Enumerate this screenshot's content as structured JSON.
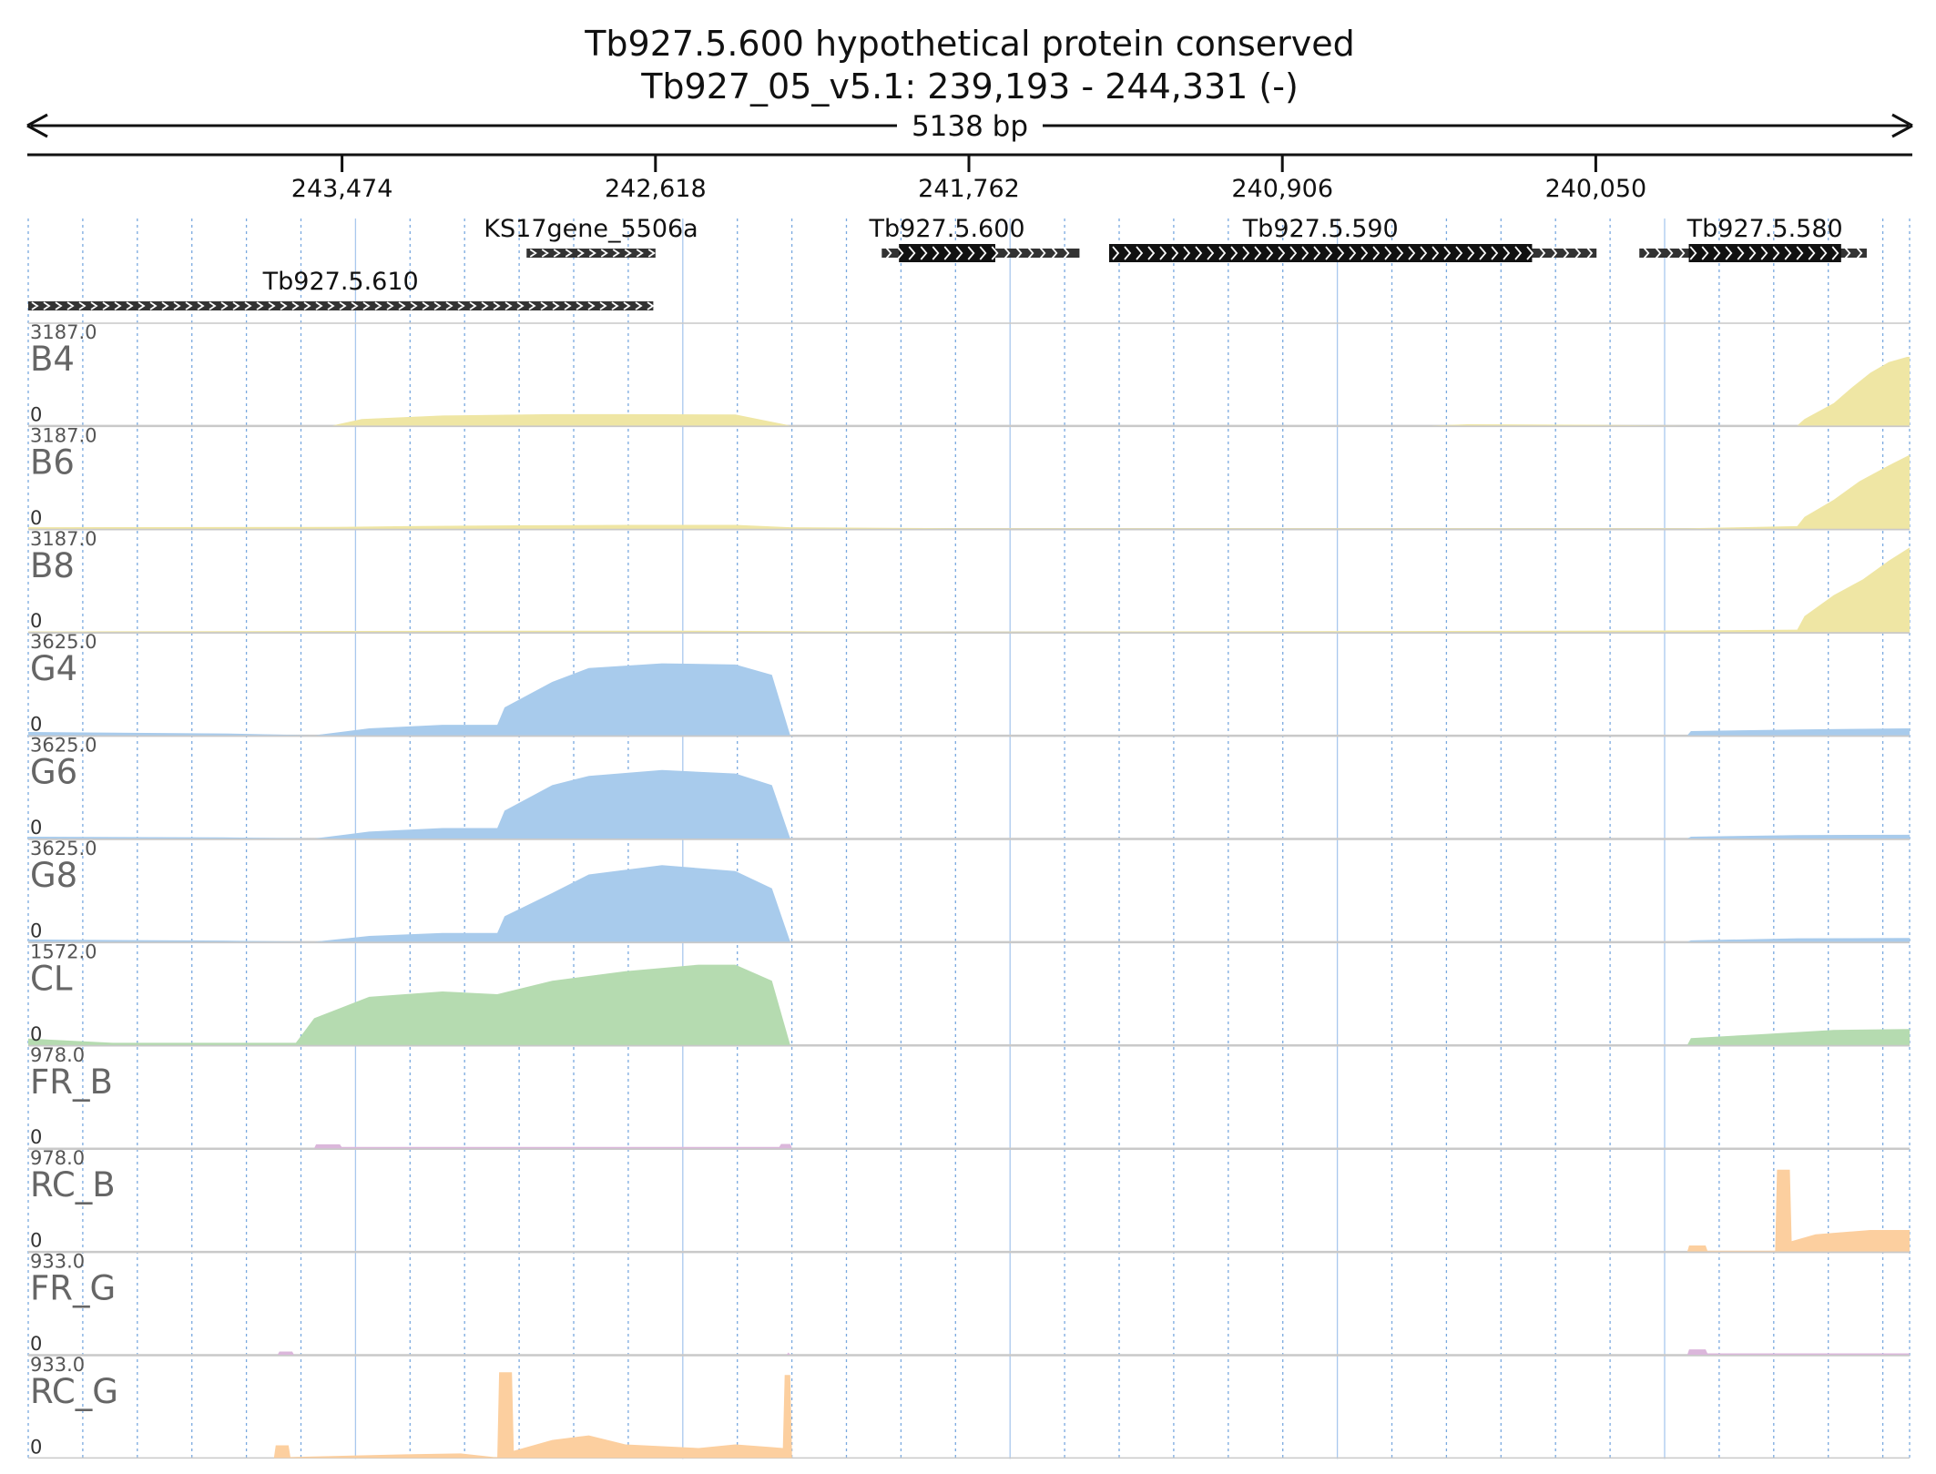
{
  "chart_data": {
    "type": "area",
    "title": "Tb927.5.600  hypothetical protein  conserved",
    "subtitle": "Tb927_05_v5.1: 239,193 - 244,331 (-)",
    "span_label": "5138 bp",
    "region": {
      "chrom": "Tb927_05_v5.1",
      "start": 239193,
      "end": 244331,
      "strand": "-"
    },
    "ticks": [
      "243,474",
      "242,618",
      "241,762",
      "240,906",
      "240,050"
    ],
    "tick_values": [
      243474,
      242618,
      241762,
      240906,
      240050
    ],
    "genes": [
      {
        "name": "KS17gene_5506a",
        "start": 242618,
        "end": 242970,
        "cds": null,
        "row": 0
      },
      {
        "name": "Tb927.5.600",
        "start": 241460,
        "end": 242000,
        "cds": [
          241690,
          241953
        ],
        "row": 0
      },
      {
        "name": "Tb927.5.590",
        "start": 240048,
        "end": 241379,
        "cds": [
          240224,
          241379
        ],
        "row": 0
      },
      {
        "name": "Tb927.5.580",
        "start": 239310,
        "end": 239931,
        "cds": [
          239380,
          239796
        ],
        "row": 0
      },
      {
        "name": "Tb927.5.610",
        "start": 242624,
        "end": 244331,
        "cds": null,
        "row": 1
      }
    ],
    "series": [
      {
        "name": "B4",
        "max_label": "3187.0",
        "zero_label": "0",
        "ylim": [
          0,
          3187
        ],
        "color": "#efe6a4",
        "points": [
          [
            244331,
            0
          ],
          [
            243500,
            0
          ],
          [
            243420,
            250
          ],
          [
            243200,
            380
          ],
          [
            242900,
            430
          ],
          [
            242700,
            430
          ],
          [
            242400,
            420
          ],
          [
            242250,
            0
          ],
          [
            240500,
            0
          ],
          [
            240400,
            50
          ],
          [
            240100,
            30
          ],
          [
            239800,
            0
          ],
          [
            239500,
            0
          ],
          [
            239480,
            250
          ],
          [
            239400,
            850
          ],
          [
            239350,
            1450
          ],
          [
            239300,
            2000
          ],
          [
            239250,
            2400
          ],
          [
            239200,
            2600
          ],
          [
            239193,
            2600
          ]
        ]
      },
      {
        "name": "B6",
        "max_label": "3187.0",
        "zero_label": "0",
        "ylim": [
          0,
          3187
        ],
        "color": "#efe6a4",
        "points": [
          [
            244331,
            60
          ],
          [
            243500,
            70
          ],
          [
            243300,
            100
          ],
          [
            243000,
            130
          ],
          [
            242700,
            150
          ],
          [
            242400,
            150
          ],
          [
            242250,
            60
          ],
          [
            241800,
            20
          ],
          [
            239800,
            20
          ],
          [
            239500,
            100
          ],
          [
            239480,
            450
          ],
          [
            239400,
            1100
          ],
          [
            239330,
            1800
          ],
          [
            239250,
            2400
          ],
          [
            239193,
            2800
          ]
        ]
      },
      {
        "name": "B8",
        "max_label": "3187.0",
        "zero_label": "0",
        "ylim": [
          0,
          3187
        ],
        "color": "#efe6a4",
        "points": [
          [
            244331,
            20
          ],
          [
            243500,
            40
          ],
          [
            243000,
            50
          ],
          [
            242500,
            50
          ],
          [
            242250,
            30
          ],
          [
            241800,
            10
          ],
          [
            239800,
            60
          ],
          [
            239500,
            90
          ],
          [
            239480,
            600
          ],
          [
            239400,
            1400
          ],
          [
            239320,
            2000
          ],
          [
            239250,
            2700
          ],
          [
            239193,
            3200
          ]
        ]
      },
      {
        "name": "G4",
        "max_label": "3625.0",
        "zero_label": "0",
        "ylim": [
          0,
          3625
        ],
        "color": "#a8cbec",
        "points": [
          [
            244331,
            140
          ],
          [
            243800,
            80
          ],
          [
            243550,
            0
          ],
          [
            243400,
            300
          ],
          [
            243200,
            450
          ],
          [
            243050,
            450
          ],
          [
            243030,
            1200
          ],
          [
            242900,
            2300
          ],
          [
            242800,
            2900
          ],
          [
            242600,
            3100
          ],
          [
            242400,
            3050
          ],
          [
            242300,
            2600
          ],
          [
            242250,
            0
          ],
          [
            241500,
            0
          ],
          [
            239800,
            0
          ],
          [
            239790,
            180
          ],
          [
            239500,
            250
          ],
          [
            239193,
            300
          ]
        ]
      },
      {
        "name": "G6",
        "max_label": "3625.0",
        "zero_label": "0",
        "ylim": [
          0,
          3625
        ],
        "color": "#a8cbec",
        "points": [
          [
            244331,
            80
          ],
          [
            243800,
            50
          ],
          [
            243550,
            0
          ],
          [
            243400,
            300
          ],
          [
            243200,
            450
          ],
          [
            243050,
            450
          ],
          [
            243030,
            1200
          ],
          [
            242900,
            2300
          ],
          [
            242800,
            2700
          ],
          [
            242600,
            2950
          ],
          [
            242400,
            2800
          ],
          [
            242300,
            2300
          ],
          [
            242250,
            0
          ],
          [
            239800,
            0
          ],
          [
            239790,
            80
          ],
          [
            239500,
            150
          ],
          [
            239193,
            160
          ]
        ]
      },
      {
        "name": "G8",
        "max_label": "3625.0",
        "zero_label": "0",
        "ylim": [
          0,
          3625
        ],
        "color": "#a8cbec",
        "points": [
          [
            244331,
            100
          ],
          [
            243800,
            50
          ],
          [
            243550,
            0
          ],
          [
            243400,
            250
          ],
          [
            243200,
            380
          ],
          [
            243050,
            380
          ],
          [
            243030,
            1100
          ],
          [
            242900,
            2100
          ],
          [
            242800,
            2900
          ],
          [
            242600,
            3300
          ],
          [
            242400,
            3050
          ],
          [
            242300,
            2300
          ],
          [
            242250,
            0
          ],
          [
            239800,
            0
          ],
          [
            239790,
            60
          ],
          [
            239500,
            150
          ],
          [
            239193,
            160
          ]
        ]
      },
      {
        "name": "CL",
        "max_label": "1572.0",
        "zero_label": "0",
        "ylim": [
          0,
          1572
        ],
        "color": "#b5dbb0",
        "points": [
          [
            244331,
            120
          ],
          [
            244100,
            40
          ],
          [
            243600,
            40
          ],
          [
            243550,
            500
          ],
          [
            243400,
            900
          ],
          [
            243200,
            1000
          ],
          [
            243050,
            950
          ],
          [
            242900,
            1200
          ],
          [
            242700,
            1380
          ],
          [
            242500,
            1500
          ],
          [
            242400,
            1500
          ],
          [
            242300,
            1200
          ],
          [
            242250,
            0
          ],
          [
            239800,
            0
          ],
          [
            239790,
            130
          ],
          [
            239600,
            200
          ],
          [
            239400,
            280
          ],
          [
            239193,
            300
          ]
        ]
      },
      {
        "name": "FR_B",
        "max_label": "978.0",
        "zero_label": "0",
        "ylim": [
          0,
          978
        ],
        "color": "#dbb7db",
        "points": [
          [
            244331,
            0
          ],
          [
            243550,
            0
          ],
          [
            243545,
            45
          ],
          [
            243480,
            45
          ],
          [
            243475,
            15
          ],
          [
            242400,
            15
          ],
          [
            242280,
            15
          ],
          [
            242275,
            50
          ],
          [
            242250,
            50
          ],
          [
            242245,
            0
          ],
          [
            239193,
            0
          ]
        ]
      },
      {
        "name": "RC_B",
        "max_label": "978.0",
        "zero_label": "0",
        "ylim": [
          0,
          978
        ],
        "color": "#fccf9f",
        "points": [
          [
            244331,
            0
          ],
          [
            239800,
            0
          ],
          [
            239795,
            70
          ],
          [
            239750,
            70
          ],
          [
            239745,
            10
          ],
          [
            239560,
            10
          ],
          [
            239555,
            950
          ],
          [
            239520,
            950
          ],
          [
            239515,
            120
          ],
          [
            239450,
            200
          ],
          [
            239300,
            250
          ],
          [
            239193,
            250
          ]
        ]
      },
      {
        "name": "FR_G",
        "max_label": "933.0",
        "zero_label": "0",
        "ylim": [
          0,
          933
        ],
        "color": "#dbb7db",
        "points": [
          [
            244331,
            0
          ],
          [
            243650,
            0
          ],
          [
            243645,
            35
          ],
          [
            243610,
            35
          ],
          [
            243605,
            0
          ],
          [
            242260,
            0
          ],
          [
            242255,
            25
          ],
          [
            242250,
            0
          ],
          [
            239800,
            0
          ],
          [
            239795,
            60
          ],
          [
            239750,
            60
          ],
          [
            239745,
            15
          ],
          [
            239193,
            15
          ]
        ]
      },
      {
        "name": "RC_G",
        "max_label": "933.0",
        "zero_label": "0",
        "ylim": [
          0,
          933
        ],
        "color": "#fccf9f",
        "points": [
          [
            244331,
            0
          ],
          [
            243660,
            0
          ],
          [
            243655,
            140
          ],
          [
            243620,
            140
          ],
          [
            243615,
            10
          ],
          [
            243300,
            40
          ],
          [
            243150,
            50
          ],
          [
            243060,
            10
          ],
          [
            243050,
            10
          ],
          [
            243045,
            950
          ],
          [
            243010,
            950
          ],
          [
            243005,
            80
          ],
          [
            242900,
            200
          ],
          [
            242800,
            250
          ],
          [
            242700,
            150
          ],
          [
            242500,
            110
          ],
          [
            242400,
            150
          ],
          [
            242300,
            120
          ],
          [
            242270,
            110
          ],
          [
            242265,
            920
          ],
          [
            242250,
            920
          ],
          [
            242245,
            0
          ],
          [
            239193,
            0
          ]
        ]
      }
    ]
  }
}
